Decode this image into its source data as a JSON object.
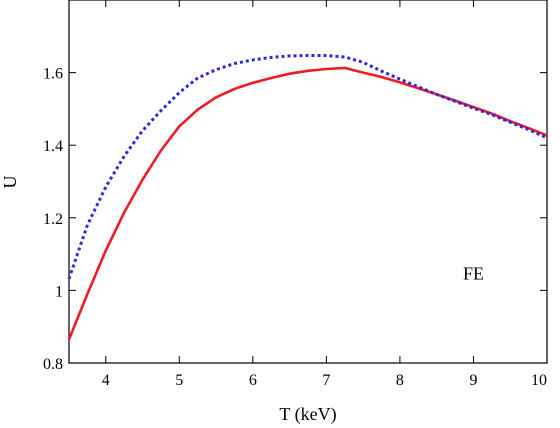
{
  "chart_data": {
    "type": "line",
    "title": "",
    "xlabel": "T (keV)",
    "ylabel": "U",
    "xlim": [
      3.5,
      10
    ],
    "ylim": [
      0.8,
      1.8
    ],
    "xticks": [
      4,
      5,
      6,
      7,
      8,
      9,
      10
    ],
    "yticks": [
      0.8,
      1,
      1.2,
      1.4,
      1.6
    ],
    "ytick_labels": [
      "0.8",
      "1",
      "1.2",
      "1.4",
      "1.6"
    ],
    "grid": false,
    "legend": "none",
    "annotations": [
      {
        "text": "FE",
        "x": 9.0,
        "y": 1.03
      }
    ],
    "series": [
      {
        "style": "solid",
        "color": "#ee1c24",
        "x": [
          3.5,
          3.75,
          4.0,
          4.25,
          4.5,
          4.75,
          5.0,
          5.25,
          5.5,
          5.75,
          6.0,
          6.25,
          6.5,
          6.75,
          7.0,
          7.25,
          7.5,
          7.75,
          8.0,
          8.25,
          8.5,
          8.75,
          9.0,
          9.25,
          9.5,
          9.75,
          10.0
        ],
        "y": [
          0.865,
          0.99,
          1.11,
          1.215,
          1.305,
          1.385,
          1.452,
          1.498,
          1.532,
          1.555,
          1.572,
          1.585,
          1.597,
          1.605,
          1.61,
          1.613,
          1.6,
          1.588,
          1.573,
          1.557,
          1.54,
          1.523,
          1.505,
          1.487,
          1.466,
          1.447,
          1.427
        ]
      },
      {
        "style": "dotted",
        "color": "#2a2ae0",
        "x": [
          3.5,
          3.75,
          4.0,
          4.25,
          4.5,
          4.75,
          5.0,
          5.25,
          5.5,
          5.75,
          6.0,
          6.25,
          6.5,
          6.75,
          7.0,
          7.25,
          7.5,
          7.75,
          8.0,
          8.25,
          8.5,
          8.75,
          9.0,
          9.25,
          9.5,
          9.75,
          10.0
        ],
        "y": [
          1.032,
          1.18,
          1.285,
          1.37,
          1.44,
          1.495,
          1.545,
          1.585,
          1.608,
          1.625,
          1.635,
          1.642,
          1.646,
          1.647,
          1.647,
          1.643,
          1.628,
          1.604,
          1.582,
          1.561,
          1.54,
          1.521,
          1.502,
          1.484,
          1.463,
          1.443,
          1.42
        ]
      }
    ]
  }
}
